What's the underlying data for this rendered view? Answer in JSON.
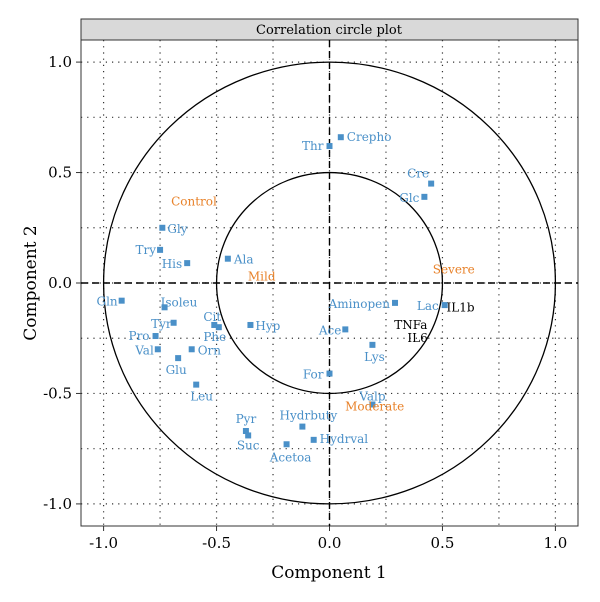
{
  "chart_data": {
    "type": "scatter",
    "title": "Correlation circle plot",
    "xlabel": "Component 1",
    "ylabel": "Component 2",
    "xlim": [
      -1.1,
      1.1
    ],
    "ylim": [
      -1.1,
      1.1
    ],
    "xticks": [
      "-1.0",
      "-0.5",
      "0.0",
      "0.5",
      "1.0"
    ],
    "yticks": [
      "-1.0",
      "-0.5",
      "0.0",
      "0.5",
      "1.0"
    ],
    "grid": true,
    "circles": [
      1.0,
      0.5
    ],
    "colors": {
      "metabolite": "#4a90c8",
      "group": "#e8822a",
      "cytokine": "#000000",
      "panel_header": "#d9d9d9"
    },
    "points": [
      {
        "label": "Crepho",
        "x": 0.05,
        "y": 0.66,
        "kind": "metabolite"
      },
      {
        "label": "Thr",
        "x": 0.0,
        "y": 0.62,
        "kind": "metabolite"
      },
      {
        "label": "Cre",
        "x": 0.45,
        "y": 0.45,
        "kind": "metabolite"
      },
      {
        "label": "Glc",
        "x": 0.42,
        "y": 0.39,
        "kind": "metabolite"
      },
      {
        "label": "Gly",
        "x": -0.74,
        "y": 0.25,
        "kind": "metabolite"
      },
      {
        "label": "Try",
        "x": -0.75,
        "y": 0.15,
        "kind": "metabolite"
      },
      {
        "label": "His",
        "x": -0.63,
        "y": 0.09,
        "kind": "metabolite"
      },
      {
        "label": "Ala",
        "x": -0.45,
        "y": 0.11,
        "kind": "metabolite"
      },
      {
        "label": "Gln",
        "x": -0.92,
        "y": -0.08,
        "kind": "metabolite"
      },
      {
        "label": "Isoleu",
        "x": -0.73,
        "y": -0.11,
        "kind": "metabolite"
      },
      {
        "label": "Tyr",
        "x": -0.69,
        "y": -0.18,
        "kind": "metabolite"
      },
      {
        "label": "Cit",
        "x": -0.51,
        "y": -0.19,
        "kind": "metabolite"
      },
      {
        "label": "Phe",
        "x": -0.49,
        "y": -0.2,
        "kind": "metabolite"
      },
      {
        "label": "Hyp",
        "x": -0.35,
        "y": -0.19,
        "kind": "metabolite"
      },
      {
        "label": "Pro",
        "x": -0.77,
        "y": -0.24,
        "kind": "metabolite"
      },
      {
        "label": "Val",
        "x": -0.76,
        "y": -0.3,
        "kind": "metabolite"
      },
      {
        "label": "Orn",
        "x": -0.61,
        "y": -0.3,
        "kind": "metabolite"
      },
      {
        "label": "Glu",
        "x": -0.67,
        "y": -0.34,
        "kind": "metabolite"
      },
      {
        "label": "Leu",
        "x": -0.59,
        "y": -0.46,
        "kind": "metabolite"
      },
      {
        "label": "Aminopen",
        "x": 0.29,
        "y": -0.09,
        "kind": "metabolite"
      },
      {
        "label": "Lac",
        "x": 0.51,
        "y": -0.1,
        "kind": "metabolite"
      },
      {
        "label": "Ace",
        "x": 0.07,
        "y": -0.21,
        "kind": "metabolite"
      },
      {
        "label": "Lys",
        "x": 0.19,
        "y": -0.28,
        "kind": "metabolite"
      },
      {
        "label": "For",
        "x": 0.0,
        "y": -0.41,
        "kind": "metabolite"
      },
      {
        "label": "Valp",
        "x": 0.19,
        "y": -0.55,
        "kind": "metabolite"
      },
      {
        "label": "Pyr",
        "x": -0.37,
        "y": -0.67,
        "kind": "metabolite"
      },
      {
        "label": "Hydrbuty",
        "x": -0.12,
        "y": -0.65,
        "kind": "metabolite"
      },
      {
        "label": "Hydrval",
        "x": -0.07,
        "y": -0.71,
        "kind": "metabolite"
      },
      {
        "label": "Suc",
        "x": -0.36,
        "y": -0.69,
        "kind": "metabolite"
      },
      {
        "label": "Acetoa",
        "x": -0.19,
        "y": -0.73,
        "kind": "metabolite"
      }
    ],
    "text_labels": [
      {
        "label": "Control",
        "x": -0.6,
        "y": 0.37,
        "kind": "group"
      },
      {
        "label": "Mild",
        "x": -0.3,
        "y": 0.03,
        "kind": "group"
      },
      {
        "label": "Severe",
        "x": 0.55,
        "y": 0.06,
        "kind": "group"
      },
      {
        "label": "Moderate",
        "x": 0.2,
        "y": -0.56,
        "kind": "group"
      },
      {
        "label": "IL1b",
        "x": 0.58,
        "y": -0.11,
        "kind": "cytokine"
      },
      {
        "label": "TNFa",
        "x": 0.36,
        "y": -0.19,
        "kind": "cytokine"
      },
      {
        "label": "IL6",
        "x": 0.39,
        "y": -0.25,
        "kind": "cytokine"
      }
    ]
  }
}
